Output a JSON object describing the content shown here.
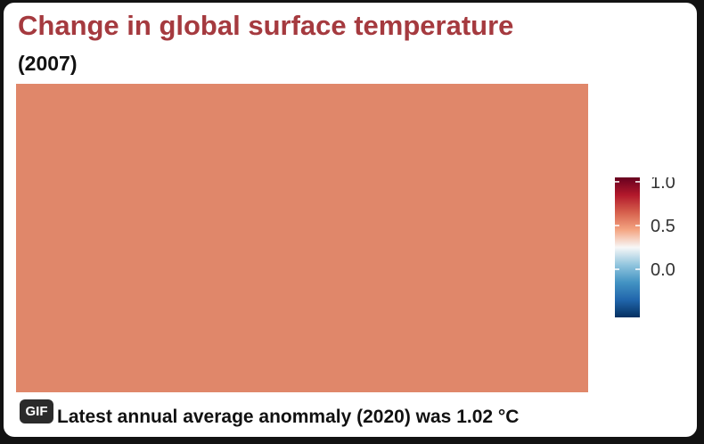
{
  "chart_data": {
    "type": "heatmap",
    "title": "Change in global surface temperature",
    "subtitle": "(2007)",
    "value": 0.62,
    "colorbar": {
      "ticks": [
        1.0,
        0.5,
        0.0
      ],
      "tick_labels": [
        "1.0",
        "0.5",
        "0.0"
      ],
      "range": [
        -0.55,
        1.05
      ],
      "colors": [
        "#053061",
        "#2166ac",
        "#4393c3",
        "#92c5de",
        "#f7f7f7",
        "#f4a582",
        "#d6604d",
        "#b2182b",
        "#67001f"
      ],
      "placement": "right"
    },
    "cell_color": "#e0876a"
  },
  "badge": {
    "label": "GIF"
  },
  "caption": "Latest annual average anommaly (2020) was 1.02 °C"
}
